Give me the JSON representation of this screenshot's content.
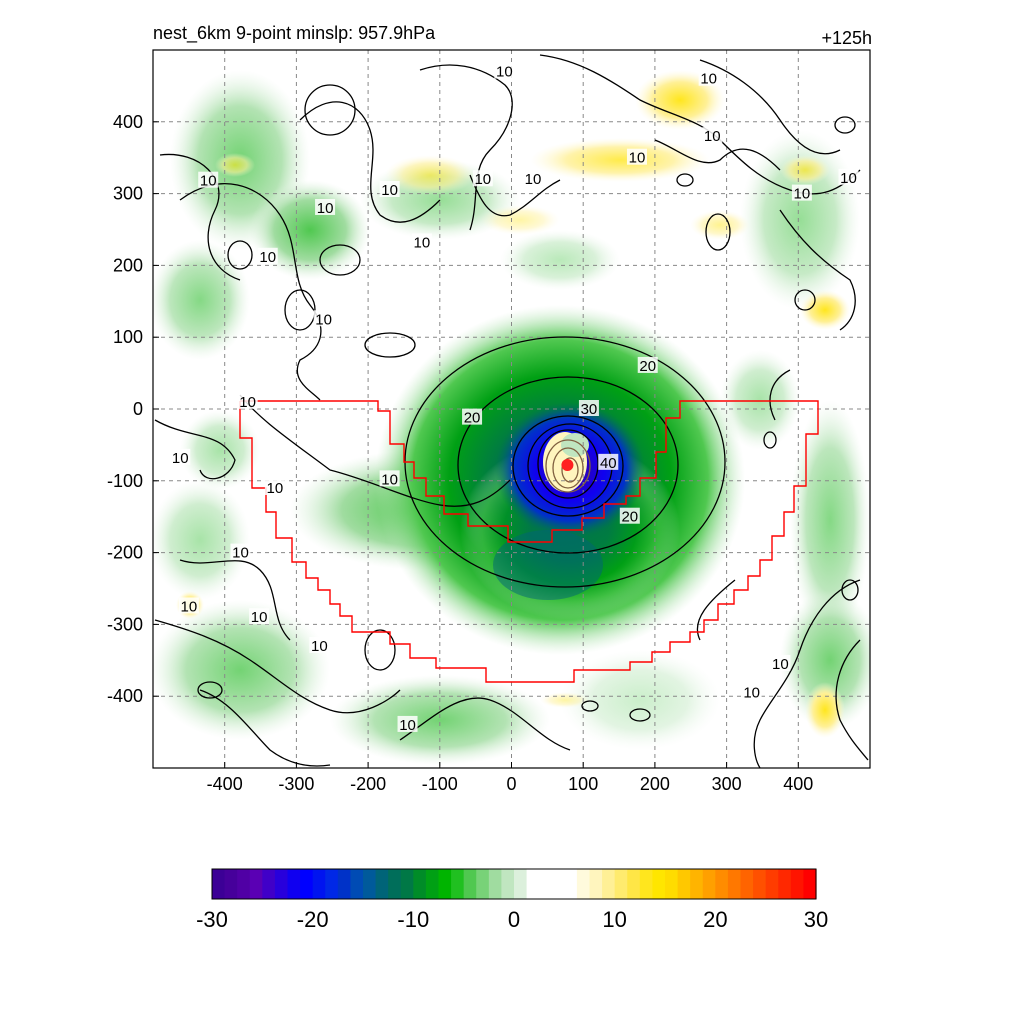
{
  "header": {
    "title": "nest_6km  9-point minslp: 957.9hPa",
    "time_label": "+125h"
  },
  "chart_data": {
    "type": "heatmap",
    "xlim": [
      -500,
      500
    ],
    "ylim": [
      -500,
      500
    ],
    "x_ticks": [
      -400,
      -300,
      -200,
      -100,
      0,
      100,
      200,
      300,
      400
    ],
    "y_ticks": [
      400,
      300,
      200,
      100,
      0,
      -100,
      -200,
      -300,
      -400
    ],
    "grid": true,
    "grid_style": "dashed gray",
    "storm_center": {
      "x": 78,
      "y": -78,
      "color": "#ff2020"
    },
    "contour_labels": [
      {
        "text": "10",
        "x": -423,
        "y": 318
      },
      {
        "text": "10",
        "x": -340,
        "y": 212
      },
      {
        "text": "10",
        "x": -260,
        "y": 280
      },
      {
        "text": "10",
        "x": -262,
        "y": 125
      },
      {
        "text": "10",
        "x": -170,
        "y": 305
      },
      {
        "text": "10",
        "x": -125,
        "y": 232
      },
      {
        "text": "10",
        "x": -40,
        "y": 320
      },
      {
        "text": "10",
        "x": 30,
        "y": 320
      },
      {
        "text": "10",
        "x": -10,
        "y": 470
      },
      {
        "text": "10",
        "x": 175,
        "y": 350
      },
      {
        "text": "10",
        "x": 275,
        "y": 460
      },
      {
        "text": "10",
        "x": 280,
        "y": 380
      },
      {
        "text": "10",
        "x": 405,
        "y": 300
      },
      {
        "text": "10",
        "x": 470,
        "y": 322
      },
      {
        "text": "10",
        "x": -368,
        "y": 10
      },
      {
        "text": "10",
        "x": -462,
        "y": -68
      },
      {
        "text": "10",
        "x": -330,
        "y": -110
      },
      {
        "text": "10",
        "x": -170,
        "y": -98
      },
      {
        "text": "10",
        "x": -378,
        "y": -200
      },
      {
        "text": "10",
        "x": -450,
        "y": -275
      },
      {
        "text": "10",
        "x": -352,
        "y": -290
      },
      {
        "text": "10",
        "x": -268,
        "y": -330
      },
      {
        "text": "10",
        "x": -145,
        "y": -440
      },
      {
        "text": "10",
        "x": 375,
        "y": -355
      },
      {
        "text": "10",
        "x": 335,
        "y": -395
      },
      {
        "text": "20",
        "x": 190,
        "y": 60
      },
      {
        "text": "20",
        "x": -55,
        "y": -12
      },
      {
        "text": "20",
        "x": 165,
        "y": -150
      },
      {
        "text": "30",
        "x": 108,
        "y": 0
      },
      {
        "text": "40",
        "x": 135,
        "y": -75
      }
    ],
    "fields": {
      "filled": "shaded anomaly field (colorbar)",
      "contours": "black contour lines"
    },
    "highlight_region_color": "#ff0000"
  },
  "colorbar": {
    "min": -30,
    "max": 30,
    "labels": [
      "-30",
      "-20",
      "-10",
      "0",
      "10",
      "20",
      "30"
    ],
    "colors": [
      "#3c0096",
      "#46009b",
      "#5000a5",
      "#5a00b4",
      "#4000c8",
      "#2800dc",
      "#1000f0",
      "#0000ff",
      "#0014f0",
      "#0028e6",
      "#0032c8",
      "#004bb4",
      "#005a9b",
      "#006478",
      "#006e5a",
      "#007846",
      "#008c28",
      "#00a014",
      "#00b400",
      "#20c020",
      "#50c850",
      "#78d278",
      "#a0dca0",
      "#c0e6c0",
      "#dcf0dc",
      "#ffffff",
      "#ffffff",
      "#ffffff",
      "#ffffff",
      "#fffadc",
      "#fff5be",
      "#fff096",
      "#ffeb6e",
      "#ffe646",
      "#ffe61e",
      "#ffe600",
      "#ffdc00",
      "#ffc800",
      "#ffb400",
      "#ffa000",
      "#ff8c00",
      "#ff7800",
      "#ff6400",
      "#ff5000",
      "#ff3c00",
      "#ff2800",
      "#ff1400",
      "#ff0000"
    ]
  }
}
